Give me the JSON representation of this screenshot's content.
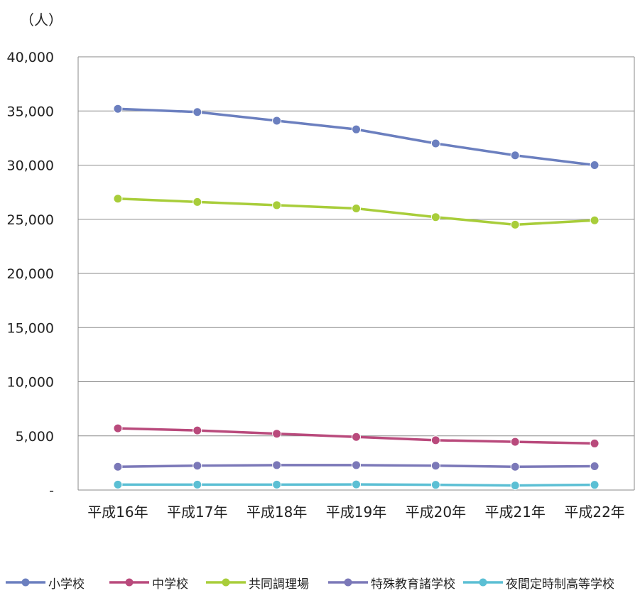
{
  "chart_data": {
    "type": "line",
    "unit_label": "（人）",
    "categories": [
      "平成16年",
      "平成17年",
      "平成18年",
      "平成19年",
      "平成20年",
      "平成21年",
      "平成22年"
    ],
    "ylim": [
      0,
      40000
    ],
    "yticks": [
      0,
      5000,
      10000,
      15000,
      20000,
      25000,
      30000,
      35000,
      40000
    ],
    "ytick_labels": [
      "-",
      "5,000",
      "10,000",
      "15,000",
      "20,000",
      "25,000",
      "30,000",
      "35,000",
      "40,000"
    ],
    "grid": true,
    "legend_position": "bottom",
    "series": [
      {
        "name": "小学校",
        "color": "#6b7fbf",
        "values": [
          35200,
          34900,
          34100,
          33300,
          32000,
          30900,
          30000
        ]
      },
      {
        "name": "中学校",
        "color": "#b94a7c",
        "values": [
          5700,
          5500,
          5200,
          4900,
          4600,
          4450,
          4300
        ]
      },
      {
        "name": "共同調理場",
        "color": "#a8cd3a",
        "values": [
          26900,
          26600,
          26300,
          26000,
          25200,
          24500,
          24900
        ]
      },
      {
        "name": "特殊教育諸学校",
        "color": "#7b78b8",
        "values": [
          2150,
          2250,
          2300,
          2300,
          2250,
          2150,
          2200
        ]
      },
      {
        "name": "夜間定時制高等学校",
        "color": "#5bbfd4",
        "values": [
          500,
          500,
          500,
          520,
          480,
          420,
          480
        ]
      }
    ]
  }
}
